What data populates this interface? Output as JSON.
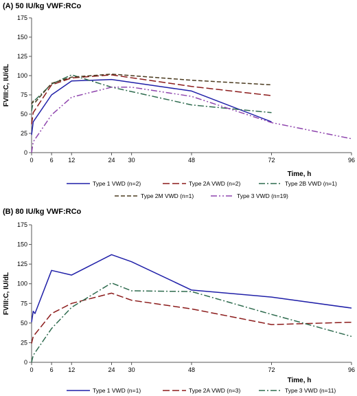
{
  "chart_data": [
    {
      "type": "line",
      "title": "(A) 50 IU/kg VWF:RCo",
      "xlabel": "Time, h",
      "ylabel": "FVIII:C, IU/dL",
      "xlim": [
        0,
        96
      ],
      "ylim": [
        0,
        175
      ],
      "xticks": [
        0,
        6,
        12,
        24,
        30,
        48,
        72,
        96
      ],
      "yticks": [
        0,
        25,
        50,
        75,
        100,
        125,
        150,
        175
      ],
      "grid": false,
      "legend_position": "bottom",
      "series": [
        {
          "name": "Type 1 VWD (n=2)",
          "color": "#1f1fa8",
          "dash": "solid",
          "x": [
            0,
            0.5,
            6,
            12,
            24,
            48,
            72
          ],
          "y": [
            23,
            40,
            75,
            93,
            95,
            80,
            40
          ]
        },
        {
          "name": "Type 2A VWD (n=2)",
          "color": "#8b1a1a",
          "dash": "longdash",
          "x": [
            0,
            0.5,
            6,
            12,
            24,
            48,
            72
          ],
          "y": [
            37,
            52,
            88,
            97,
            101,
            86,
            74
          ]
        },
        {
          "name": "Type 2B VWD (n=1)",
          "color": "#2e6b4e",
          "dash": "dashdot",
          "x": [
            0,
            0.5,
            6,
            12,
            24,
            48,
            72
          ],
          "y": [
            54,
            66,
            89,
            101,
            85,
            62,
            52
          ]
        },
        {
          "name": "Type 2M VWD (n=1)",
          "color": "#4a3a1e",
          "dash": "dashed",
          "x": [
            0,
            0.5,
            1,
            6,
            12,
            24,
            48,
            72
          ],
          "y": [
            63,
            67,
            65,
            90,
            98,
            102,
            94,
            88
          ]
        },
        {
          "name": "Type 3 VWD (n=19)",
          "color": "#8e44ad",
          "dash": "dashdotdot",
          "x": [
            0,
            0.5,
            6,
            12,
            24,
            30,
            48,
            72,
            96
          ],
          "y": [
            0,
            14,
            49,
            72,
            85,
            85,
            73,
            39,
            18
          ]
        }
      ]
    },
    {
      "type": "line",
      "title": "(B) 80 IU/kg VWF:RCo",
      "xlabel": "Time, h",
      "ylabel": "FVIII:C, IU/dL",
      "xlim": [
        0,
        96
      ],
      "ylim": [
        0,
        175
      ],
      "xticks": [
        0,
        6,
        12,
        24,
        30,
        48,
        72,
        96
      ],
      "yticks": [
        0,
        25,
        50,
        75,
        100,
        125,
        150,
        175
      ],
      "grid": false,
      "legend_position": "bottom",
      "series": [
        {
          "name": "Type 1 VWD (n=1)",
          "color": "#1f1fa8",
          "dash": "solid",
          "x": [
            0,
            0.5,
            1,
            6,
            12,
            24,
            30,
            48,
            72,
            96
          ],
          "y": [
            51,
            65,
            62,
            117,
            111,
            137,
            128,
            92,
            83,
            69
          ]
        },
        {
          "name": "Type 2A VWD (n=3)",
          "color": "#8b1a1a",
          "dash": "longdash",
          "x": [
            0,
            0.5,
            6,
            12,
            24,
            30,
            48,
            72,
            96
          ],
          "y": [
            24,
            33,
            62,
            75,
            88,
            79,
            68,
            48,
            51
          ]
        },
        {
          "name": "Type 3 VWD (n=11)",
          "color": "#2e6b4e",
          "dash": "dashdot",
          "x": [
            0,
            0.5,
            6,
            12,
            24,
            30,
            48,
            72,
            96
          ],
          "y": [
            0,
            9,
            43,
            70,
            101,
            91,
            90,
            61,
            33
          ]
        }
      ]
    }
  ]
}
